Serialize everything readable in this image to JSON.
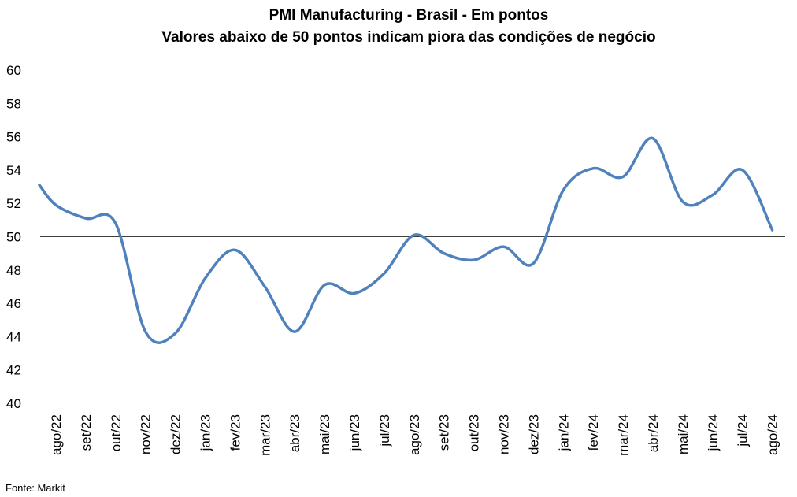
{
  "chart_data": {
    "type": "line",
    "title": "PMI Manufacturing - Brasil - Em pontos",
    "subtitle": "Valores abaixo de 50 pontos indicam piora das condições de negócio",
    "source": "Fonte: Markit",
    "categories": [
      "ago/22",
      "set/22",
      "out/22",
      "nov/22",
      "dez/22",
      "jan/23",
      "fev/23",
      "mar/23",
      "abr/23",
      "mai/23",
      "jun/23",
      "jul/23",
      "ago/23",
      "set/23",
      "out/23",
      "nov/23",
      "dez/23",
      "jan/24",
      "fev/24",
      "mar/24",
      "abr/24",
      "mai/24",
      "jun/24",
      "jul/24",
      "ago/24"
    ],
    "series": [
      {
        "values": [
          51.9,
          51.1,
          50.8,
          44.3,
          44.2,
          47.5,
          49.2,
          47.0,
          44.3,
          47.1,
          46.6,
          47.8,
          50.1,
          49.0,
          48.6,
          49.4,
          48.4,
          52.8,
          54.1,
          53.6,
          55.9,
          52.1,
          52.5,
          54.0,
          50.4
        ]
      }
    ],
    "reference_line": 50,
    "ylim": [
      40,
      60
    ],
    "yticks": [
      "40",
      "42",
      "44",
      "46",
      "48",
      "50",
      "52",
      "54",
      "56",
      "58",
      "60"
    ],
    "grid": false,
    "line_color": "#4f81bd"
  }
}
